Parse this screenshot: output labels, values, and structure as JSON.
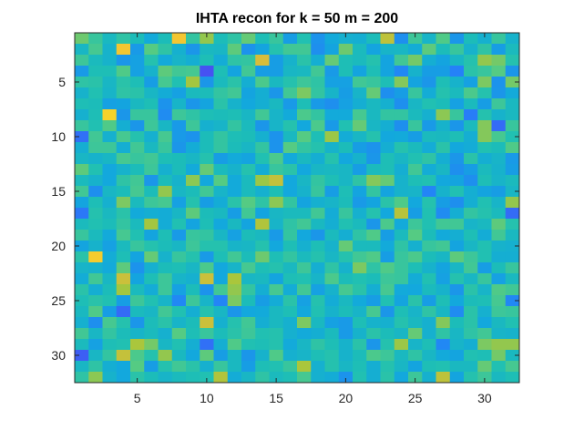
{
  "chart_data": {
    "type": "heatmap",
    "title": "IHTA recon for k = 50 m = 200",
    "xlabel": "",
    "ylabel": "",
    "rows": 32,
    "cols": 32,
    "xlim": [
      0.5,
      32.5
    ],
    "ylim": [
      0.5,
      32.5
    ],
    "y_axis_direction": "reversed",
    "x_ticks": [
      5,
      10,
      15,
      20,
      25,
      30
    ],
    "y_ticks": [
      5,
      10,
      15,
      20,
      25,
      30
    ],
    "x_tick_labels": [
      "5",
      "10",
      "15",
      "20",
      "25",
      "30"
    ],
    "y_tick_labels": [
      "5",
      "10",
      "15",
      "20",
      "25",
      "30"
    ],
    "colormap": "parula",
    "colormap_stops": [
      "#3e26a8",
      "#4652f3",
      "#2482f8",
      "#12a9dc",
      "#1ebfb4",
      "#52cb86",
      "#a8c63c",
      "#f1b93a",
      "#f6db24",
      "#f9fb0e"
    ],
    "value_range": [
      0,
      1
    ],
    "values": [
      [
        0.59,
        0.5,
        0.41,
        0.48,
        0.43,
        0.34,
        0.43,
        0.82,
        0.49,
        0.64,
        0.43,
        0.48,
        0.58,
        0.44,
        0.5,
        0.3,
        0.45,
        0.27,
        0.34,
        0.37,
        0.36,
        0.43,
        0.7,
        0.26,
        0.51,
        0.39,
        0.55,
        0.28,
        0.43,
        0.37,
        0.5,
        0.38
      ],
      [
        0.4,
        0.53,
        0.38,
        0.82,
        0.29,
        0.56,
        0.48,
        0.37,
        0.28,
        0.41,
        0.4,
        0.57,
        0.27,
        0.32,
        0.46,
        0.52,
        0.52,
        0.26,
        0.32,
        0.59,
        0.42,
        0.32,
        0.39,
        0.4,
        0.35,
        0.57,
        0.43,
        0.5,
        0.38,
        0.48,
        0.3,
        0.42
      ],
      [
        0.51,
        0.42,
        0.38,
        0.28,
        0.31,
        0.46,
        0.34,
        0.39,
        0.36,
        0.44,
        0.35,
        0.48,
        0.49,
        0.74,
        0.3,
        0.38,
        0.47,
        0.36,
        0.58,
        0.44,
        0.42,
        0.46,
        0.32,
        0.52,
        0.6,
        0.36,
        0.32,
        0.4,
        0.46,
        0.64,
        0.6,
        0.46
      ],
      [
        0.29,
        0.44,
        0.44,
        0.55,
        0.31,
        0.38,
        0.57,
        0.52,
        0.53,
        0.11,
        0.44,
        0.32,
        0.52,
        0.3,
        0.3,
        0.4,
        0.41,
        0.52,
        0.29,
        0.44,
        0.32,
        0.44,
        0.32,
        0.24,
        0.38,
        0.3,
        0.3,
        0.22,
        0.47,
        0.5,
        0.56,
        0.28
      ],
      [
        0.48,
        0.47,
        0.4,
        0.47,
        0.44,
        0.3,
        0.53,
        0.45,
        0.66,
        0.28,
        0.42,
        0.47,
        0.36,
        0.54,
        0.41,
        0.46,
        0.51,
        0.48,
        0.31,
        0.31,
        0.52,
        0.5,
        0.44,
        0.62,
        0.32,
        0.28,
        0.44,
        0.38,
        0.31,
        0.61,
        0.27,
        0.6
      ],
      [
        0.38,
        0.45,
        0.39,
        0.48,
        0.47,
        0.4,
        0.35,
        0.31,
        0.42,
        0.43,
        0.49,
        0.52,
        0.32,
        0.36,
        0.28,
        0.52,
        0.61,
        0.49,
        0.39,
        0.3,
        0.39,
        0.58,
        0.26,
        0.3,
        0.5,
        0.35,
        0.46,
        0.42,
        0.54,
        0.46,
        0.28,
        0.34
      ],
      [
        0.44,
        0.43,
        0.31,
        0.32,
        0.41,
        0.44,
        0.27,
        0.39,
        0.28,
        0.32,
        0.47,
        0.38,
        0.33,
        0.36,
        0.41,
        0.29,
        0.44,
        0.29,
        0.26,
        0.31,
        0.36,
        0.41,
        0.37,
        0.26,
        0.4,
        0.45,
        0.43,
        0.31,
        0.42,
        0.3,
        0.51,
        0.41
      ],
      [
        0.37,
        0.44,
        0.86,
        0.28,
        0.5,
        0.5,
        0.25,
        0.51,
        0.48,
        0.44,
        0.43,
        0.44,
        0.4,
        0.52,
        0.39,
        0.34,
        0.54,
        0.49,
        0.34,
        0.34,
        0.53,
        0.41,
        0.49,
        0.49,
        0.42,
        0.37,
        0.63,
        0.5,
        0.21,
        0.46,
        0.38,
        0.41
      ],
      [
        0.5,
        0.45,
        0.55,
        0.36,
        0.28,
        0.51,
        0.4,
        0.29,
        0.51,
        0.37,
        0.39,
        0.49,
        0.42,
        0.28,
        0.39,
        0.46,
        0.33,
        0.54,
        0.29,
        0.45,
        0.58,
        0.4,
        0.36,
        0.26,
        0.5,
        0.29,
        0.38,
        0.28,
        0.42,
        0.62,
        0.17,
        0.5
      ],
      [
        0.18,
        0.52,
        0.37,
        0.53,
        0.46,
        0.37,
        0.53,
        0.29,
        0.27,
        0.43,
        0.49,
        0.44,
        0.43,
        0.37,
        0.27,
        0.41,
        0.56,
        0.44,
        0.65,
        0.35,
        0.4,
        0.46,
        0.33,
        0.34,
        0.3,
        0.42,
        0.41,
        0.44,
        0.36,
        0.62,
        0.53,
        0.45
      ],
      [
        0.36,
        0.51,
        0.51,
        0.36,
        0.52,
        0.41,
        0.5,
        0.28,
        0.35,
        0.43,
        0.49,
        0.43,
        0.4,
        0.49,
        0.27,
        0.56,
        0.49,
        0.46,
        0.38,
        0.43,
        0.3,
        0.27,
        0.36,
        0.46,
        0.42,
        0.35,
        0.47,
        0.33,
        0.35,
        0.45,
        0.43,
        0.55
      ],
      [
        0.4,
        0.38,
        0.4,
        0.53,
        0.5,
        0.52,
        0.44,
        0.43,
        0.4,
        0.46,
        0.3,
        0.34,
        0.32,
        0.45,
        0.54,
        0.34,
        0.41,
        0.36,
        0.46,
        0.33,
        0.38,
        0.28,
        0.44,
        0.4,
        0.45,
        0.48,
        0.36,
        0.28,
        0.47,
        0.36,
        0.39,
        0.29
      ],
      [
        0.57,
        0.45,
        0.33,
        0.38,
        0.43,
        0.51,
        0.37,
        0.43,
        0.34,
        0.58,
        0.42,
        0.38,
        0.46,
        0.35,
        0.5,
        0.47,
        0.33,
        0.4,
        0.41,
        0.4,
        0.3,
        0.42,
        0.44,
        0.36,
        0.52,
        0.35,
        0.4,
        0.26,
        0.3,
        0.42,
        0.38,
        0.3
      ],
      [
        0.42,
        0.38,
        0.33,
        0.48,
        0.52,
        0.28,
        0.43,
        0.38,
        0.63,
        0.33,
        0.56,
        0.34,
        0.42,
        0.65,
        0.71,
        0.33,
        0.4,
        0.49,
        0.44,
        0.4,
        0.48,
        0.62,
        0.58,
        0.38,
        0.44,
        0.45,
        0.33,
        0.32,
        0.26,
        0.44,
        0.39,
        0.42
      ],
      [
        0.52,
        0.26,
        0.4,
        0.43,
        0.53,
        0.43,
        0.64,
        0.4,
        0.43,
        0.52,
        0.39,
        0.34,
        0.42,
        0.37,
        0.44,
        0.33,
        0.38,
        0.5,
        0.3,
        0.44,
        0.32,
        0.49,
        0.32,
        0.38,
        0.39,
        0.23,
        0.38,
        0.45,
        0.36,
        0.32,
        0.3,
        0.4
      ],
      [
        0.32,
        0.44,
        0.37,
        0.61,
        0.42,
        0.51,
        0.53,
        0.31,
        0.46,
        0.3,
        0.35,
        0.47,
        0.56,
        0.48,
        0.63,
        0.49,
        0.32,
        0.37,
        0.39,
        0.43,
        0.29,
        0.32,
        0.47,
        0.55,
        0.33,
        0.46,
        0.3,
        0.26,
        0.36,
        0.45,
        0.39,
        0.64
      ],
      [
        0.2,
        0.46,
        0.41,
        0.47,
        0.34,
        0.36,
        0.35,
        0.4,
        0.57,
        0.43,
        0.41,
        0.3,
        0.52,
        0.32,
        0.4,
        0.42,
        0.42,
        0.52,
        0.35,
        0.5,
        0.37,
        0.46,
        0.33,
        0.69,
        0.3,
        0.45,
        0.25,
        0.36,
        0.49,
        0.46,
        0.42,
        0.17
      ],
      [
        0.42,
        0.45,
        0.43,
        0.49,
        0.42,
        0.66,
        0.35,
        0.45,
        0.32,
        0.44,
        0.33,
        0.41,
        0.32,
        0.68,
        0.39,
        0.48,
        0.52,
        0.41,
        0.36,
        0.45,
        0.42,
        0.28,
        0.54,
        0.34,
        0.51,
        0.45,
        0.52,
        0.52,
        0.39,
        0.41,
        0.57,
        0.46
      ],
      [
        0.5,
        0.42,
        0.34,
        0.53,
        0.45,
        0.32,
        0.44,
        0.29,
        0.5,
        0.49,
        0.4,
        0.31,
        0.43,
        0.41,
        0.29,
        0.49,
        0.33,
        0.28,
        0.42,
        0.36,
        0.48,
        0.55,
        0.3,
        0.42,
        0.56,
        0.43,
        0.34,
        0.36,
        0.44,
        0.35,
        0.52,
        0.41
      ],
      [
        0.32,
        0.38,
        0.31,
        0.42,
        0.5,
        0.46,
        0.43,
        0.4,
        0.51,
        0.46,
        0.46,
        0.39,
        0.4,
        0.46,
        0.33,
        0.44,
        0.37,
        0.44,
        0.38,
        0.58,
        0.42,
        0.42,
        0.34,
        0.48,
        0.37,
        0.5,
        0.52,
        0.32,
        0.4,
        0.45,
        0.38,
        0.37
      ],
      [
        0.47,
        0.84,
        0.35,
        0.44,
        0.32,
        0.58,
        0.38,
        0.5,
        0.46,
        0.29,
        0.44,
        0.52,
        0.43,
        0.59,
        0.44,
        0.49,
        0.42,
        0.46,
        0.4,
        0.46,
        0.52,
        0.55,
        0.3,
        0.5,
        0.54,
        0.43,
        0.4,
        0.57,
        0.51,
        0.45,
        0.36,
        0.36
      ],
      [
        0.39,
        0.38,
        0.34,
        0.57,
        0.27,
        0.37,
        0.43,
        0.44,
        0.4,
        0.54,
        0.33,
        0.39,
        0.53,
        0.44,
        0.46,
        0.41,
        0.51,
        0.36,
        0.48,
        0.38,
        0.61,
        0.48,
        0.55,
        0.5,
        0.44,
        0.38,
        0.32,
        0.4,
        0.52,
        0.3,
        0.43,
        0.5
      ],
      [
        0.35,
        0.52,
        0.4,
        0.72,
        0.32,
        0.44,
        0.51,
        0.39,
        0.37,
        0.72,
        0.33,
        0.67,
        0.4,
        0.41,
        0.32,
        0.44,
        0.45,
        0.39,
        0.54,
        0.43,
        0.45,
        0.43,
        0.51,
        0.5,
        0.35,
        0.45,
        0.31,
        0.46,
        0.4,
        0.5,
        0.31,
        0.41
      ],
      [
        0.47,
        0.36,
        0.43,
        0.66,
        0.42,
        0.35,
        0.51,
        0.31,
        0.43,
        0.27,
        0.52,
        0.64,
        0.49,
        0.36,
        0.53,
        0.35,
        0.52,
        0.31,
        0.38,
        0.53,
        0.47,
        0.36,
        0.53,
        0.34,
        0.33,
        0.42,
        0.38,
        0.28,
        0.47,
        0.39,
        0.55,
        0.52
      ],
      [
        0.44,
        0.47,
        0.45,
        0.3,
        0.51,
        0.45,
        0.39,
        0.24,
        0.51,
        0.39,
        0.23,
        0.61,
        0.43,
        0.3,
        0.35,
        0.47,
        0.31,
        0.46,
        0.35,
        0.41,
        0.34,
        0.3,
        0.45,
        0.32,
        0.47,
        0.3,
        0.44,
        0.33,
        0.43,
        0.44,
        0.53,
        0.24
      ],
      [
        0.41,
        0.55,
        0.3,
        0.17,
        0.42,
        0.4,
        0.52,
        0.45,
        0.36,
        0.46,
        0.4,
        0.28,
        0.33,
        0.34,
        0.41,
        0.44,
        0.33,
        0.45,
        0.38,
        0.43,
        0.39,
        0.53,
        0.28,
        0.44,
        0.39,
        0.48,
        0.4,
        0.25,
        0.47,
        0.37,
        0.51,
        0.5
      ],
      [
        0.37,
        0.26,
        0.53,
        0.46,
        0.28,
        0.43,
        0.47,
        0.39,
        0.43,
        0.72,
        0.37,
        0.46,
        0.52,
        0.36,
        0.41,
        0.37,
        0.61,
        0.41,
        0.31,
        0.29,
        0.44,
        0.38,
        0.37,
        0.46,
        0.41,
        0.37,
        0.62,
        0.43,
        0.47,
        0.33,
        0.41,
        0.45
      ],
      [
        0.52,
        0.4,
        0.49,
        0.43,
        0.39,
        0.42,
        0.37,
        0.56,
        0.44,
        0.5,
        0.43,
        0.47,
        0.51,
        0.45,
        0.46,
        0.37,
        0.34,
        0.36,
        0.42,
        0.29,
        0.38,
        0.47,
        0.43,
        0.4,
        0.58,
        0.37,
        0.48,
        0.4,
        0.48,
        0.52,
        0.39,
        0.38
      ],
      [
        0.42,
        0.31,
        0.44,
        0.45,
        0.67,
        0.6,
        0.4,
        0.45,
        0.36,
        0.18,
        0.36,
        0.55,
        0.45,
        0.44,
        0.46,
        0.34,
        0.4,
        0.48,
        0.44,
        0.38,
        0.47,
        0.28,
        0.46,
        0.65,
        0.39,
        0.44,
        0.24,
        0.39,
        0.36,
        0.61,
        0.64,
        0.64
      ],
      [
        0.14,
        0.4,
        0.49,
        0.71,
        0.54,
        0.46,
        0.64,
        0.41,
        0.33,
        0.57,
        0.3,
        0.41,
        0.28,
        0.38,
        0.55,
        0.37,
        0.39,
        0.44,
        0.46,
        0.38,
        0.43,
        0.54,
        0.51,
        0.41,
        0.48,
        0.4,
        0.34,
        0.32,
        0.45,
        0.44,
        0.6,
        0.41
      ],
      [
        0.4,
        0.48,
        0.36,
        0.33,
        0.56,
        0.3,
        0.46,
        0.52,
        0.47,
        0.37,
        0.5,
        0.41,
        0.3,
        0.44,
        0.45,
        0.5,
        0.67,
        0.37,
        0.46,
        0.4,
        0.44,
        0.36,
        0.46,
        0.4,
        0.32,
        0.44,
        0.45,
        0.41,
        0.41,
        0.58,
        0.45,
        0.53
      ],
      [
        0.48,
        0.63,
        0.38,
        0.33,
        0.47,
        0.43,
        0.39,
        0.42,
        0.44,
        0.45,
        0.68,
        0.35,
        0.4,
        0.48,
        0.42,
        0.44,
        0.53,
        0.37,
        0.35,
        0.27,
        0.45,
        0.36,
        0.47,
        0.33,
        0.51,
        0.37,
        0.7,
        0.32,
        0.46,
        0.51,
        0.41,
        0.44
      ]
    ]
  }
}
